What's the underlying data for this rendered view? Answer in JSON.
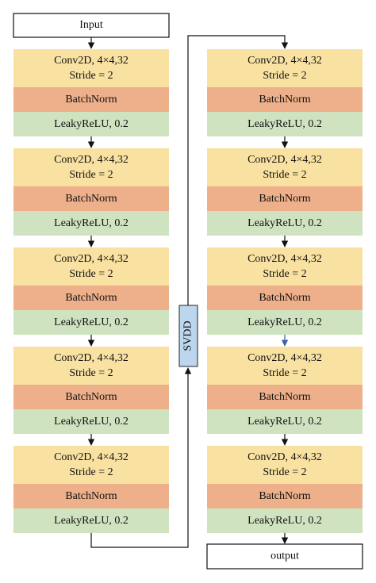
{
  "input": "Input",
  "encoder": [
    {
      "conv": "Conv2D, 4×4,32",
      "stride": "Stride = 2",
      "norm": "BatchNorm",
      "activation": "LeakyReLU, 0.2"
    },
    {
      "conv": "Conv2D, 4×4,32",
      "stride": "Stride = 2",
      "norm": "BatchNorm",
      "activation": "LeakyReLU, 0.2"
    },
    {
      "conv": "Conv2D, 4×4,32",
      "stride": "Stride = 2",
      "norm": "BatchNorm",
      "activation": "LeakyReLU, 0.2"
    },
    {
      "conv": "Conv2D, 4×4,32",
      "stride": "Stride = 2",
      "norm": "BatchNorm",
      "activation": "LeakyReLU, 0.2"
    },
    {
      "conv": "Conv2D, 4×4,32",
      "stride": "Stride = 2",
      "norm": "BatchNorm",
      "activation": "LeakyReLU, 0.2"
    }
  ],
  "bottleneck": "SVDD",
  "decoder": [
    {
      "conv": "Conv2D, 4×4,32",
      "stride": "Stride = 2",
      "norm": "BatchNorm",
      "activation": "LeakyReLU, 0.2"
    },
    {
      "conv": "Conv2D, 4×4,32",
      "stride": "Stride = 2",
      "norm": "BatchNorm",
      "activation": "LeakyReLU, 0.2"
    },
    {
      "conv": "Conv2D, 4×4,32",
      "stride": "Stride = 2",
      "norm": "BatchNorm",
      "activation": "LeakyReLU, 0.2"
    },
    {
      "conv": "Conv2D, 4×4,32",
      "stride": "Stride = 2",
      "norm": "BatchNorm",
      "activation": "LeakyReLU, 0.2"
    },
    {
      "conv": "Conv2D, 4×4,32",
      "stride": "Stride = 2",
      "norm": "BatchNorm",
      "activation": "LeakyReLU, 0.2"
    }
  ],
  "output": "output"
}
